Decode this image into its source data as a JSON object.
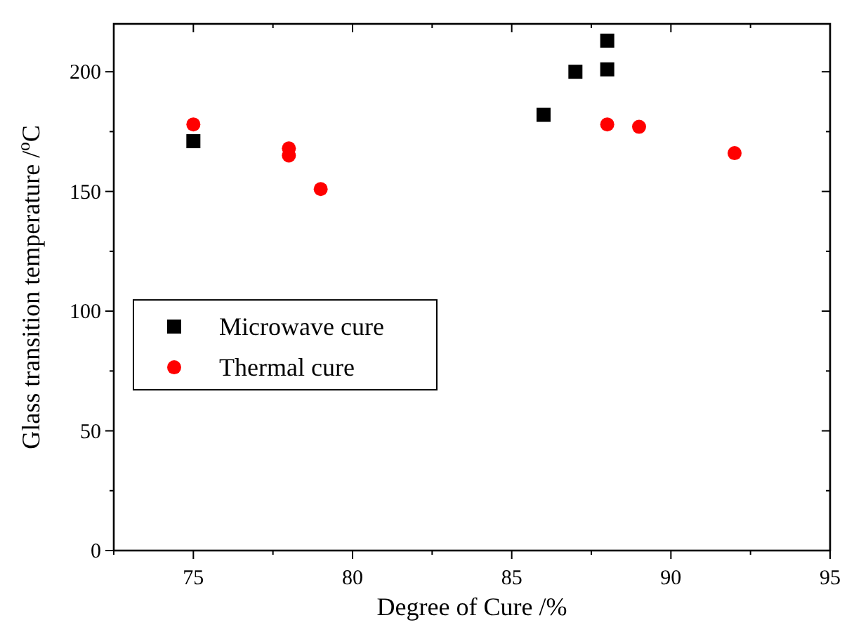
{
  "chart_data": {
    "type": "scatter",
    "xlabel": "Degree of Cure /%",
    "ylabel": "Glass transition temperature /$^{o}$C",
    "xlim": [
      72.5,
      95
    ],
    "ylim": [
      0,
      220
    ],
    "xticks": [
      {
        "value": 72.5,
        "label": null
      },
      75,
      {
        "value": 77.5,
        "label": null
      },
      80,
      {
        "value": 82.5,
        "label": null
      },
      85,
      {
        "value": 87.5,
        "label": null
      },
      90,
      {
        "value": 92.5,
        "label": null
      },
      95
    ],
    "yticks": [
      0,
      {
        "value": 25,
        "label": null
      },
      50,
      {
        "value": 75,
        "label": null
      },
      100,
      {
        "value": 125,
        "label": null
      },
      150,
      {
        "value": 175,
        "label": null
      },
      200
    ],
    "grid": false,
    "legend": "left",
    "series": [
      {
        "name": "Microwave cure",
        "color": "#000000",
        "marker": "square",
        "x": [
          75,
          86,
          87,
          88,
          88
        ],
        "values": [
          171,
          182,
          200,
          201,
          213
        ]
      },
      {
        "name": "Thermal cure",
        "color": "#ff0000",
        "marker": "circle",
        "x": [
          75,
          78,
          78,
          79,
          88,
          89,
          92
        ],
        "values": [
          178,
          168,
          165,
          151,
          178,
          177,
          166
        ]
      }
    ]
  }
}
